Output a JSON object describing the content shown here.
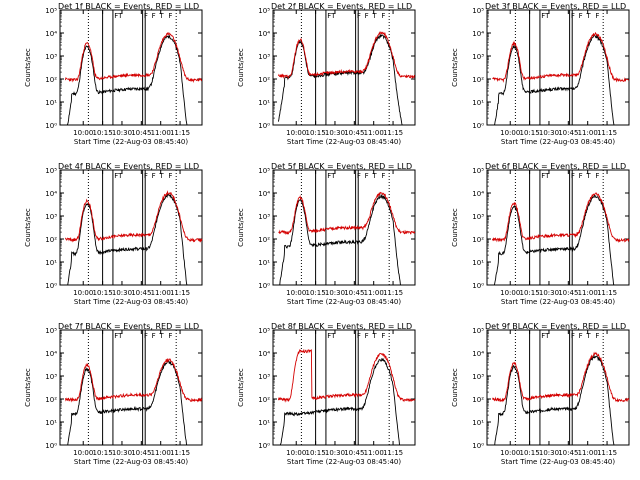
{
  "chart_data": {
    "type": "line",
    "layout": "3x3 grid of panels",
    "title_template": "Det {det}f BLACK = Events, RED = LLD",
    "xlabel": "Start Time (22-Aug-03 08:45:40)",
    "ylabel": "Counts/sec",
    "x_ticks": [
      "10:00",
      "10:15",
      "10:30",
      "10:45",
      "11:00",
      "11:15"
    ],
    "x_tick_minutes": [
      600,
      615,
      630,
      645,
      660,
      675
    ],
    "xlim_minutes": [
      582,
      692
    ],
    "yscale": "log",
    "y_ticks": [
      "10⁰",
      "10¹",
      "10²",
      "10³",
      "10⁴",
      "10⁵"
    ],
    "ylim": [
      1,
      100000
    ],
    "dotted_vlines_minutes": [
      604,
      672
    ],
    "solid_vlines_minutes": [
      615,
      623,
      646,
      648
    ],
    "markers": [
      "F",
      "T",
      "F",
      "F",
      "T",
      "F"
    ],
    "marker_minutes": [
      624,
      627,
      647,
      653,
      659,
      666
    ],
    "colors": {
      "events": "#000000",
      "lld": "#d40000",
      "axes": "#000000",
      "background": "#ffffff"
    },
    "series_names": [
      "BLACK = Events",
      "RED = LLD"
    ],
    "panels": [
      {
        "det": "1",
        "events": {
          "base": 30,
          "peak1": 2500,
          "peak2": 7000
        },
        "lld": {
          "base": 120,
          "peak1": 3500,
          "peak2": 9000
        }
      },
      {
        "det": "2",
        "events": {
          "base": 150,
          "peak1": 4000,
          "peak2": 7500
        },
        "lld": {
          "base": 170,
          "peak1": 5000,
          "peak2": 10000
        }
      },
      {
        "det": "3",
        "events": {
          "base": 30,
          "peak1": 2500,
          "peak2": 7000
        },
        "lld": {
          "base": 120,
          "peak1": 3500,
          "peak2": 9000
        }
      },
      {
        "det": "4",
        "events": {
          "base": 30,
          "peak1": 3500,
          "peak2": 8000
        },
        "lld": {
          "base": 120,
          "peak1": 4500,
          "peak2": 10000
        }
      },
      {
        "det": "5",
        "events": {
          "base": 60,
          "peak1": 4500,
          "peak2": 7000
        },
        "lld": {
          "base": 250,
          "peak1": 6000,
          "peak2": 10000
        }
      },
      {
        "det": "6",
        "events": {
          "base": 30,
          "peak1": 2500,
          "peak2": 7000
        },
        "lld": {
          "base": 120,
          "peak1": 3500,
          "peak2": 9000
        }
      },
      {
        "det": "7",
        "events": {
          "base": 30,
          "peak1": 2000,
          "peak2": 4000
        },
        "lld": {
          "base": 120,
          "peak1": 3000,
          "peak2": 5000
        }
      },
      {
        "det": "8",
        "events": {
          "base": 30,
          "peak1": 0,
          "peak2": 5000
        },
        "lld": {
          "base": 120,
          "peak1": 12000,
          "peak2": 9000,
          "plateau": [
            603,
            612
          ]
        }
      },
      {
        "det": "9",
        "events": {
          "base": 30,
          "peak1": 2500,
          "peak2": 7000
        },
        "lld": {
          "base": 120,
          "peak1": 3500,
          "peak2": 9000
        }
      }
    ]
  }
}
